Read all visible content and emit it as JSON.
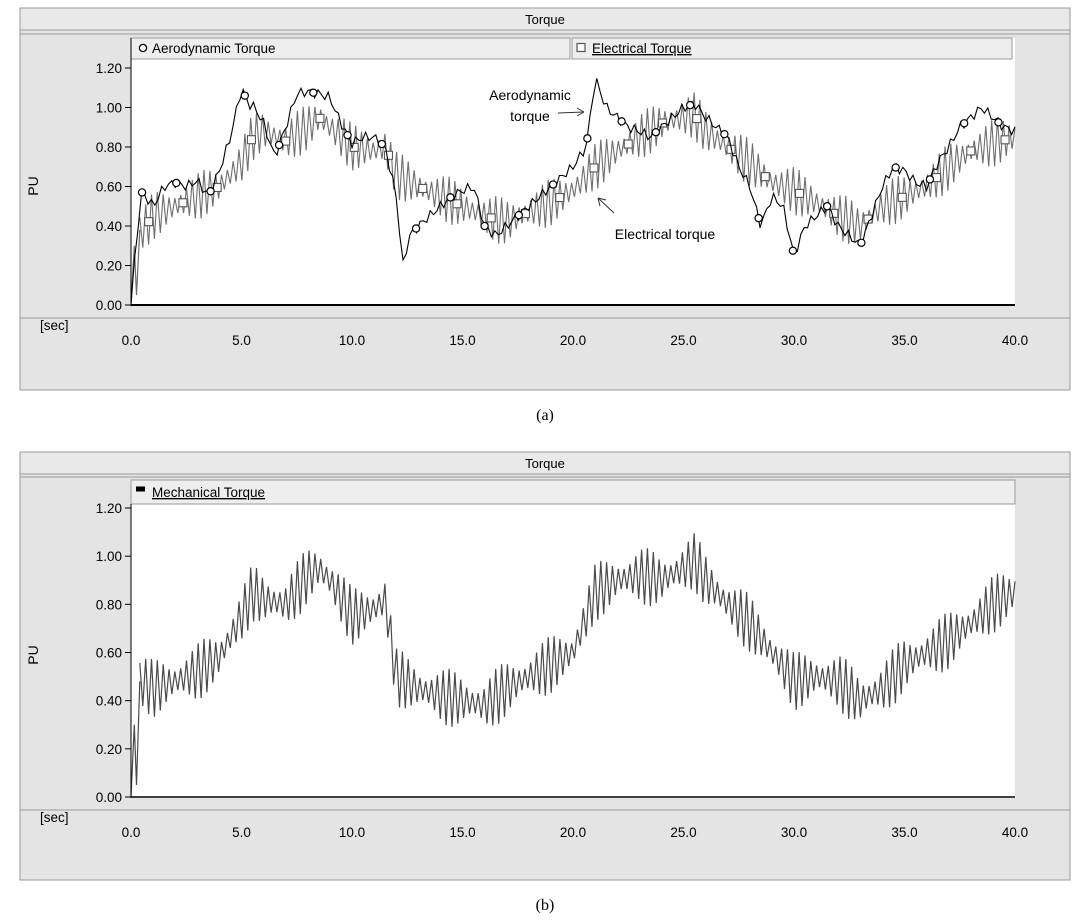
{
  "panels": [
    {
      "caption": "(a)",
      "title": "Torque",
      "ylabel": "PU",
      "xunit": "[sec]",
      "yticks": [
        "0.00",
        "0.20",
        "0.40",
        "0.60",
        "0.80",
        "1.00",
        "1.20"
      ],
      "xticks": [
        "0.0",
        "5.0",
        "10.0",
        "15.0",
        "20.0",
        "25.0",
        "30.0",
        "35.0",
        "40.0"
      ],
      "legend": [
        {
          "label": "Aerodynamic Torque",
          "marker": "circle",
          "underlined": false
        },
        {
          "label": "Electrical Torque",
          "marker": "square",
          "underlined": true
        }
      ],
      "annotations": {
        "aero_line1": "Aerodynamic",
        "aero_line2": "torque",
        "elec": "Electrical torque"
      }
    },
    {
      "caption": "(b)",
      "title": "Torque",
      "ylabel": "PU",
      "xunit": "[sec]",
      "yticks": [
        "0.00",
        "0.20",
        "0.40",
        "0.60",
        "0.80",
        "1.00",
        "1.20"
      ],
      "xticks": [
        "0.0",
        "5.0",
        "10.0",
        "15.0",
        "20.0",
        "25.0",
        "30.0",
        "35.0",
        "40.0"
      ],
      "legend": [
        {
          "label": "Mechanical Torque",
          "marker": "filled-square",
          "underlined": true
        }
      ]
    }
  ],
  "colors": {
    "frame_bg": "#e4e4e4",
    "plot_bg": "#ffffff",
    "aero_line": "#000000",
    "elec_band": "#6e6e6e",
    "mech_band": "#4a4a4a"
  },
  "chart_data": [
    {
      "type": "line",
      "title": "Torque",
      "ylabel": "PU",
      "xlabel": "[sec]",
      "xlim": [
        0,
        40
      ],
      "ylim": [
        0,
        1.2
      ],
      "legend_position": "top",
      "series": [
        {
          "name": "Aerodynamic Torque",
          "x": [
            0,
            0.2,
            0.5,
            1,
            1.5,
            2,
            2.5,
            3,
            3.5,
            4,
            4.5,
            5,
            5.3,
            5.6,
            6,
            6.5,
            7,
            7.5,
            8,
            8.5,
            9,
            9.3,
            9.6,
            10,
            10.5,
            11,
            11.5,
            12,
            12.3,
            12.6,
            13,
            13.5,
            14,
            14.5,
            15,
            15.5,
            16,
            16.5,
            17,
            17.5,
            18,
            18.5,
            19,
            19.5,
            20,
            20.3,
            20.6,
            21,
            21.5,
            22,
            22.5,
            23,
            23.5,
            24,
            24.5,
            25,
            25.5,
            26,
            26.5,
            27,
            27.5,
            28,
            28.5,
            29,
            29.5,
            30,
            30.5,
            31,
            31.5,
            32,
            32.5,
            33,
            33.5,
            34,
            34.5,
            35,
            35.5,
            36,
            36.5,
            37,
            37.5,
            38,
            38.5,
            39,
            39.5,
            40
          ],
          "values": [
            0.0,
            0.3,
            0.57,
            0.5,
            0.6,
            0.62,
            0.6,
            0.63,
            0.55,
            0.68,
            0.85,
            1.1,
            1.02,
            1.0,
            0.92,
            0.75,
            0.9,
            1.07,
            1.08,
            1.07,
            1.05,
            0.97,
            0.9,
            0.82,
            0.85,
            0.85,
            0.8,
            0.55,
            0.2,
            0.35,
            0.4,
            0.45,
            0.5,
            0.55,
            0.58,
            0.6,
            0.4,
            0.35,
            0.4,
            0.45,
            0.5,
            0.55,
            0.6,
            0.65,
            0.7,
            0.75,
            0.8,
            1.15,
            1.0,
            0.95,
            0.9,
            0.88,
            0.85,
            0.9,
            0.95,
            1.0,
            1.02,
            0.95,
            0.9,
            0.85,
            0.7,
            0.6,
            0.4,
            0.55,
            0.5,
            0.25,
            0.4,
            0.45,
            0.5,
            0.4,
            0.35,
            0.3,
            0.45,
            0.6,
            0.7,
            0.68,
            0.62,
            0.6,
            0.72,
            0.8,
            0.9,
            0.95,
            1.0,
            0.95,
            0.9,
            0.88
          ]
        },
        {
          "name": "Electrical Torque",
          "x": [
            0,
            0.5,
            1,
            2,
            3,
            4,
            5,
            5.5,
            6,
            7,
            8,
            8.5,
            9,
            10,
            11,
            11.5,
            12,
            13,
            14,
            15,
            16,
            17,
            18,
            19,
            20,
            21,
            22,
            23,
            24,
            25,
            25.5,
            26,
            27,
            28,
            29,
            30,
            31,
            32,
            33,
            34,
            35,
            36,
            37,
            38,
            39,
            40
          ],
          "values": [
            0.3,
            0.38,
            0.45,
            0.5,
            0.55,
            0.6,
            0.72,
            0.85,
            0.88,
            0.83,
            0.9,
            0.95,
            0.9,
            0.8,
            0.78,
            0.8,
            0.66,
            0.6,
            0.55,
            0.5,
            0.45,
            0.42,
            0.47,
            0.52,
            0.58,
            0.7,
            0.78,
            0.85,
            0.92,
            0.95,
            0.96,
            0.88,
            0.8,
            0.72,
            0.62,
            0.58,
            0.52,
            0.45,
            0.4,
            0.5,
            0.55,
            0.6,
            0.7,
            0.78,
            0.82,
            0.85
          ],
          "ripple": 0.1
        }
      ]
    },
    {
      "type": "line",
      "title": "Torque",
      "ylabel": "PU",
      "xlabel": "[sec]",
      "xlim": [
        0,
        40
      ],
      "ylim": [
        0,
        1.2
      ],
      "legend_position": "top",
      "series": [
        {
          "name": "Mechanical Torque",
          "x": [
            0,
            0.3,
            0.6,
            1,
            2,
            3,
            4,
            5,
            5.5,
            6,
            7,
            8,
            8.5,
            9,
            10,
            11,
            11.5,
            12,
            13,
            14,
            15,
            16,
            17,
            18,
            19,
            20,
            21,
            22,
            23,
            24,
            25,
            25.5,
            26,
            27,
            28,
            29,
            30,
            31,
            32,
            33,
            34,
            35,
            36,
            37,
            38,
            39,
            40
          ],
          "values": [
            0.0,
            0.48,
            0.47,
            0.45,
            0.48,
            0.52,
            0.58,
            0.75,
            0.85,
            0.82,
            0.8,
            0.92,
            0.95,
            0.9,
            0.75,
            0.78,
            0.82,
            0.5,
            0.45,
            0.42,
            0.4,
            0.38,
            0.45,
            0.5,
            0.55,
            0.6,
            0.85,
            0.9,
            0.92,
            0.9,
            0.95,
            0.98,
            0.9,
            0.8,
            0.72,
            0.6,
            0.48,
            0.5,
            0.48,
            0.4,
            0.45,
            0.55,
            0.6,
            0.65,
            0.72,
            0.8,
            0.85
          ],
          "ripple": 0.1
        }
      ]
    }
  ]
}
